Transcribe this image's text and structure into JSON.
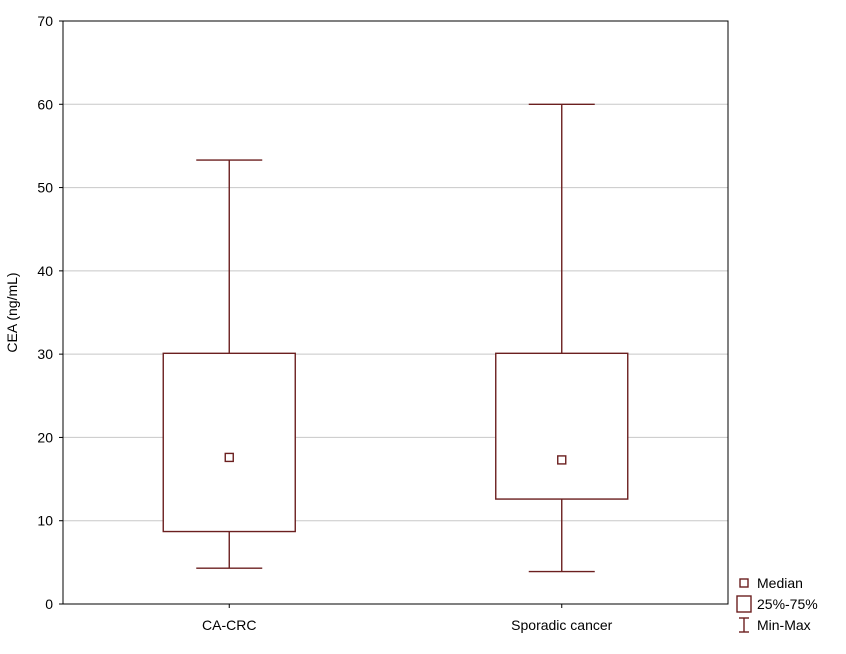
{
  "chart_data": {
    "type": "box",
    "title": "",
    "xlabel": "",
    "ylabel": "CEA (ng/mL)",
    "ylim": [
      0,
      70
    ],
    "yticks": [
      0,
      10,
      20,
      30,
      40,
      50,
      60,
      70
    ],
    "grid": true,
    "legend_position": "bottom-right",
    "colors": {
      "box": "#6b1f1f",
      "grid": "#c8c8c8",
      "frame": "#000000"
    },
    "categories": [
      "CA-CRC",
      "Sporadic cancer"
    ],
    "boxes": [
      {
        "category": "CA-CRC",
        "min": 4.3,
        "q1": 8.7,
        "median": 17.6,
        "q3": 30.1,
        "max": 53.3
      },
      {
        "category": "Sporadic cancer",
        "min": 3.9,
        "q1": 12.6,
        "median": 17.3,
        "q3": 30.1,
        "max": 60.0
      }
    ],
    "legend": [
      {
        "symbol": "median-marker",
        "label": "Median"
      },
      {
        "symbol": "box",
        "label": "25%-75%"
      },
      {
        "symbol": "whisker",
        "label": "Min-Max"
      }
    ]
  }
}
